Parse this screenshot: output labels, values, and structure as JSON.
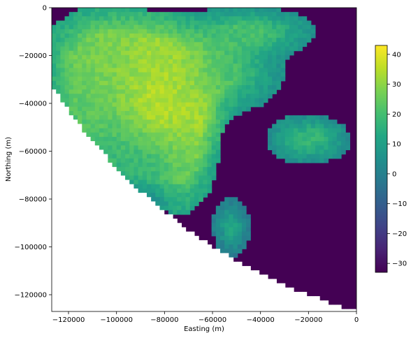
{
  "chart_data": {
    "type": "heatmap",
    "title": "",
    "xlabel": "Easting (m)",
    "ylabel": "Northing (m)",
    "xlim": [
      -127000,
      0
    ],
    "ylim": [
      -127000,
      0
    ],
    "x_ticks": [
      {
        "value": -120000,
        "label": "−120000"
      },
      {
        "value": -100000,
        "label": "−100000"
      },
      {
        "value": -80000,
        "label": "−80000"
      },
      {
        "value": -60000,
        "label": "−60000"
      },
      {
        "value": -40000,
        "label": "−40000"
      },
      {
        "value": -20000,
        "label": "−20000"
      },
      {
        "value": 0,
        "label": "0"
      }
    ],
    "y_ticks": [
      {
        "value": 0,
        "label": "0"
      },
      {
        "value": -20000,
        "label": "−20000"
      },
      {
        "value": -40000,
        "label": "−40000"
      },
      {
        "value": -60000,
        "label": "−60000"
      },
      {
        "value": -80000,
        "label": "−80000"
      },
      {
        "value": -100000,
        "label": "−100000"
      },
      {
        "value": -120000,
        "label": "−120000"
      }
    ],
    "colorbar": {
      "colormap": "viridis",
      "vmin": -33,
      "vmax": 43,
      "ticks": [
        {
          "value": 40,
          "label": "40"
        },
        {
          "value": 30,
          "label": "30"
        },
        {
          "value": 20,
          "label": "20"
        },
        {
          "value": 10,
          "label": "10"
        },
        {
          "value": 0,
          "label": "0"
        },
        {
          "value": -10,
          "label": "−10"
        },
        {
          "value": -20,
          "label": "−20"
        },
        {
          "value": -30,
          "label": "−30"
        }
      ]
    },
    "grid": false,
    "field_features": [
      {
        "value": 40,
        "x": -80000,
        "y": -38000,
        "sx": 12000,
        "sy": 14000
      },
      {
        "value": 32,
        "x": -90000,
        "y": -25000,
        "sx": 14000,
        "sy": 10000
      },
      {
        "value": 30,
        "x": -72000,
        "y": -52000,
        "sx": 7000,
        "sy": 18000
      },
      {
        "value": 26,
        "x": -105000,
        "y": -20000,
        "sx": 14000,
        "sy": 12000
      },
      {
        "value": 22,
        "x": -110000,
        "y": -45000,
        "sx": 14000,
        "sy": 14000
      },
      {
        "value": 20,
        "x": -55000,
        "y": -28000,
        "sx": 14000,
        "sy": 9000
      },
      {
        "value": 18,
        "x": -20000,
        "y": -55000,
        "sx": 10000,
        "sy": 6000
      },
      {
        "value": 15,
        "x": -90000,
        "y": -65000,
        "sx": 15000,
        "sy": 10000
      },
      {
        "value": 12,
        "x": -52000,
        "y": -92000,
        "sx": 4500,
        "sy": 7000
      },
      {
        "value": 20,
        "x": -45000,
        "y": -10000,
        "sx": 16000,
        "sy": 6000
      }
    ],
    "background_value": -32,
    "nodata_edge": {
      "center_x": 60000,
      "center_y": 87000,
      "radius": 222000
    }
  }
}
